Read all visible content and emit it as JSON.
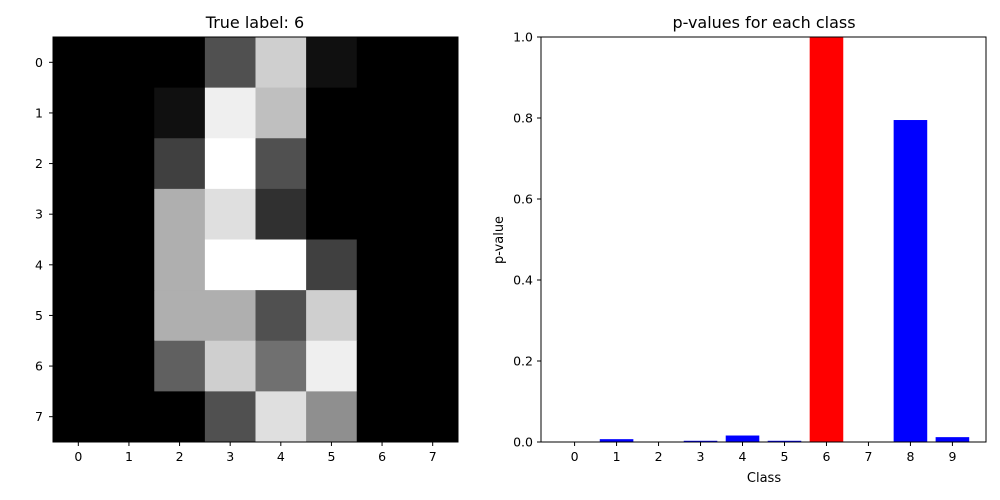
{
  "chart_data": [
    {
      "type": "heatmap",
      "title": "True label: 6",
      "x_ticks": [
        "0",
        "1",
        "2",
        "3",
        "4",
        "5",
        "6",
        "7"
      ],
      "y_ticks": [
        "0",
        "1",
        "2",
        "3",
        "4",
        "5",
        "6",
        "7"
      ],
      "colormap": "gray",
      "value_range": [
        0,
        16
      ],
      "values": [
        [
          0,
          0,
          0,
          5,
          13,
          1,
          0,
          0
        ],
        [
          0,
          0,
          1,
          15,
          12,
          0,
          0,
          0
        ],
        [
          0,
          0,
          4,
          16,
          5,
          0,
          0,
          0
        ],
        [
          0,
          0,
          11,
          14,
          3,
          0,
          0,
          0
        ],
        [
          0,
          0,
          11,
          16,
          16,
          4,
          0,
          0
        ],
        [
          0,
          0,
          11,
          11,
          5,
          13,
          0,
          0
        ],
        [
          0,
          0,
          6,
          13,
          7,
          15,
          0,
          0
        ],
        [
          0,
          0,
          0,
          5,
          14,
          9,
          0,
          0
        ]
      ]
    },
    {
      "type": "bar",
      "title": "p-values for each class",
      "xlabel": "Class",
      "ylabel": "p-value",
      "categories": [
        "0",
        "1",
        "2",
        "3",
        "4",
        "5",
        "6",
        "7",
        "8",
        "9"
      ],
      "values": [
        0.0,
        0.007,
        0.0,
        0.003,
        0.016,
        0.003,
        1.0,
        0.0,
        0.795,
        0.012
      ],
      "highlight_index": 6,
      "colors": {
        "default": "#0000ff",
        "highlight": "#ff0000"
      },
      "ylim": [
        0,
        1
      ],
      "yticks": [
        "0.0",
        "0.2",
        "0.4",
        "0.6",
        "0.8",
        "1.0"
      ]
    }
  ]
}
